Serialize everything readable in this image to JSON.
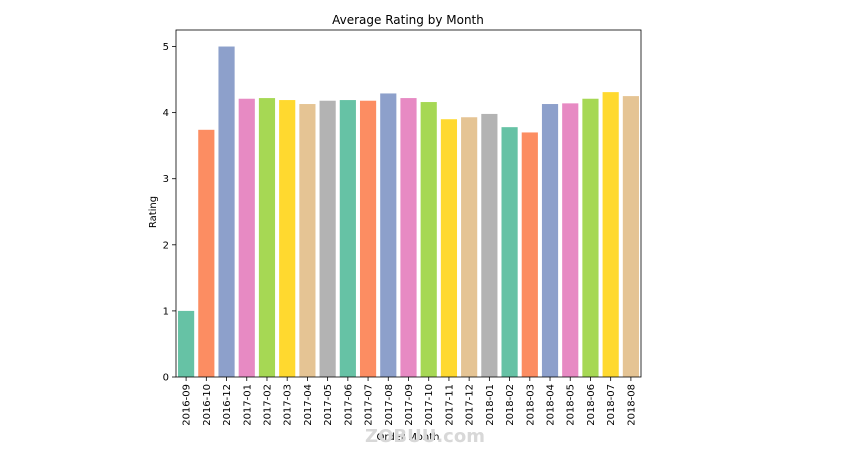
{
  "chart_data": {
    "type": "bar",
    "title": "Average Rating by Month",
    "xlabel": "Order Month",
    "ylabel": "Rating",
    "ylim": [
      0,
      5.25
    ],
    "yticks": [
      0,
      1,
      2,
      3,
      4,
      5
    ],
    "grid": false,
    "legend": "none",
    "categories": [
      "2016-09",
      "2016-10",
      "2016-12",
      "2017-01",
      "2017-02",
      "2017-03",
      "2017-04",
      "2017-05",
      "2017-06",
      "2017-07",
      "2017-08",
      "2017-09",
      "2017-10",
      "2017-11",
      "2017-12",
      "2018-01",
      "2018-02",
      "2018-03",
      "2018-04",
      "2018-05",
      "2018-06",
      "2018-07",
      "2018-08"
    ],
    "values": [
      1.0,
      3.74,
      5.0,
      4.21,
      4.22,
      4.19,
      4.13,
      4.18,
      4.19,
      4.18,
      4.29,
      4.22,
      4.16,
      3.9,
      3.93,
      3.98,
      3.78,
      3.7,
      4.13,
      4.14,
      4.21,
      4.31,
      4.25
    ],
    "colors": [
      "#66c2a5",
      "#fc8d62",
      "#8da0cb",
      "#e78ac3",
      "#a6d854",
      "#ffd92f",
      "#e5c494",
      "#b3b3b3",
      "#66c2a5",
      "#fc8d62",
      "#8da0cb",
      "#e78ac3",
      "#a6d854",
      "#ffd92f",
      "#e5c494",
      "#b3b3b3",
      "#66c2a5",
      "#fc8d62",
      "#8da0cb",
      "#e78ac3",
      "#a6d854",
      "#ffd92f",
      "#e5c494"
    ]
  },
  "watermark": "ZOBUU.com"
}
